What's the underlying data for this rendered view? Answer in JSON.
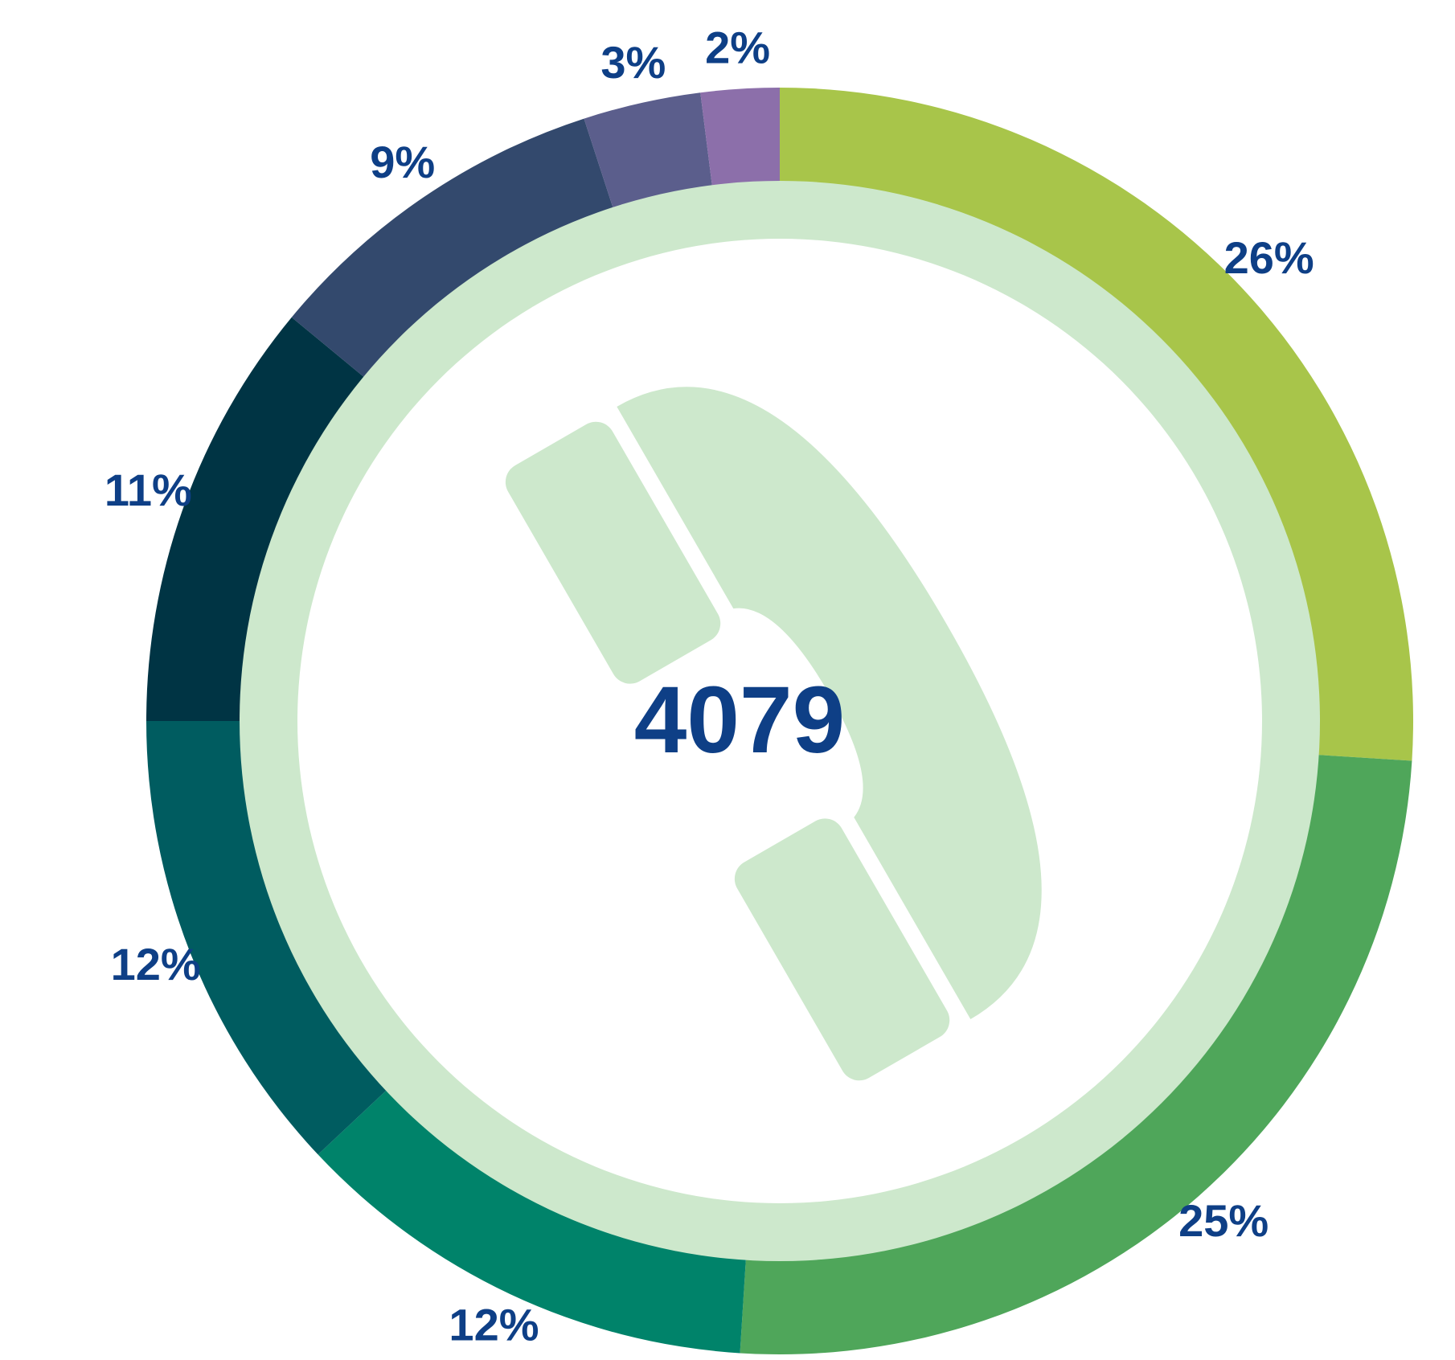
{
  "chart_data": {
    "type": "donut",
    "center_label": "4079",
    "values": [
      26,
      25,
      12,
      12,
      11,
      9,
      3,
      2
    ],
    "value_labels": [
      "26%",
      "25%",
      "12%",
      "12%",
      "11%",
      "9%",
      "3%",
      "2%"
    ],
    "colors": [
      "#a8c54a",
      "#4fa65a",
      "#00836a",
      "#005c60",
      "#003444",
      "#33496d",
      "#5b5e8c",
      "#8c6faa"
    ]
  }
}
